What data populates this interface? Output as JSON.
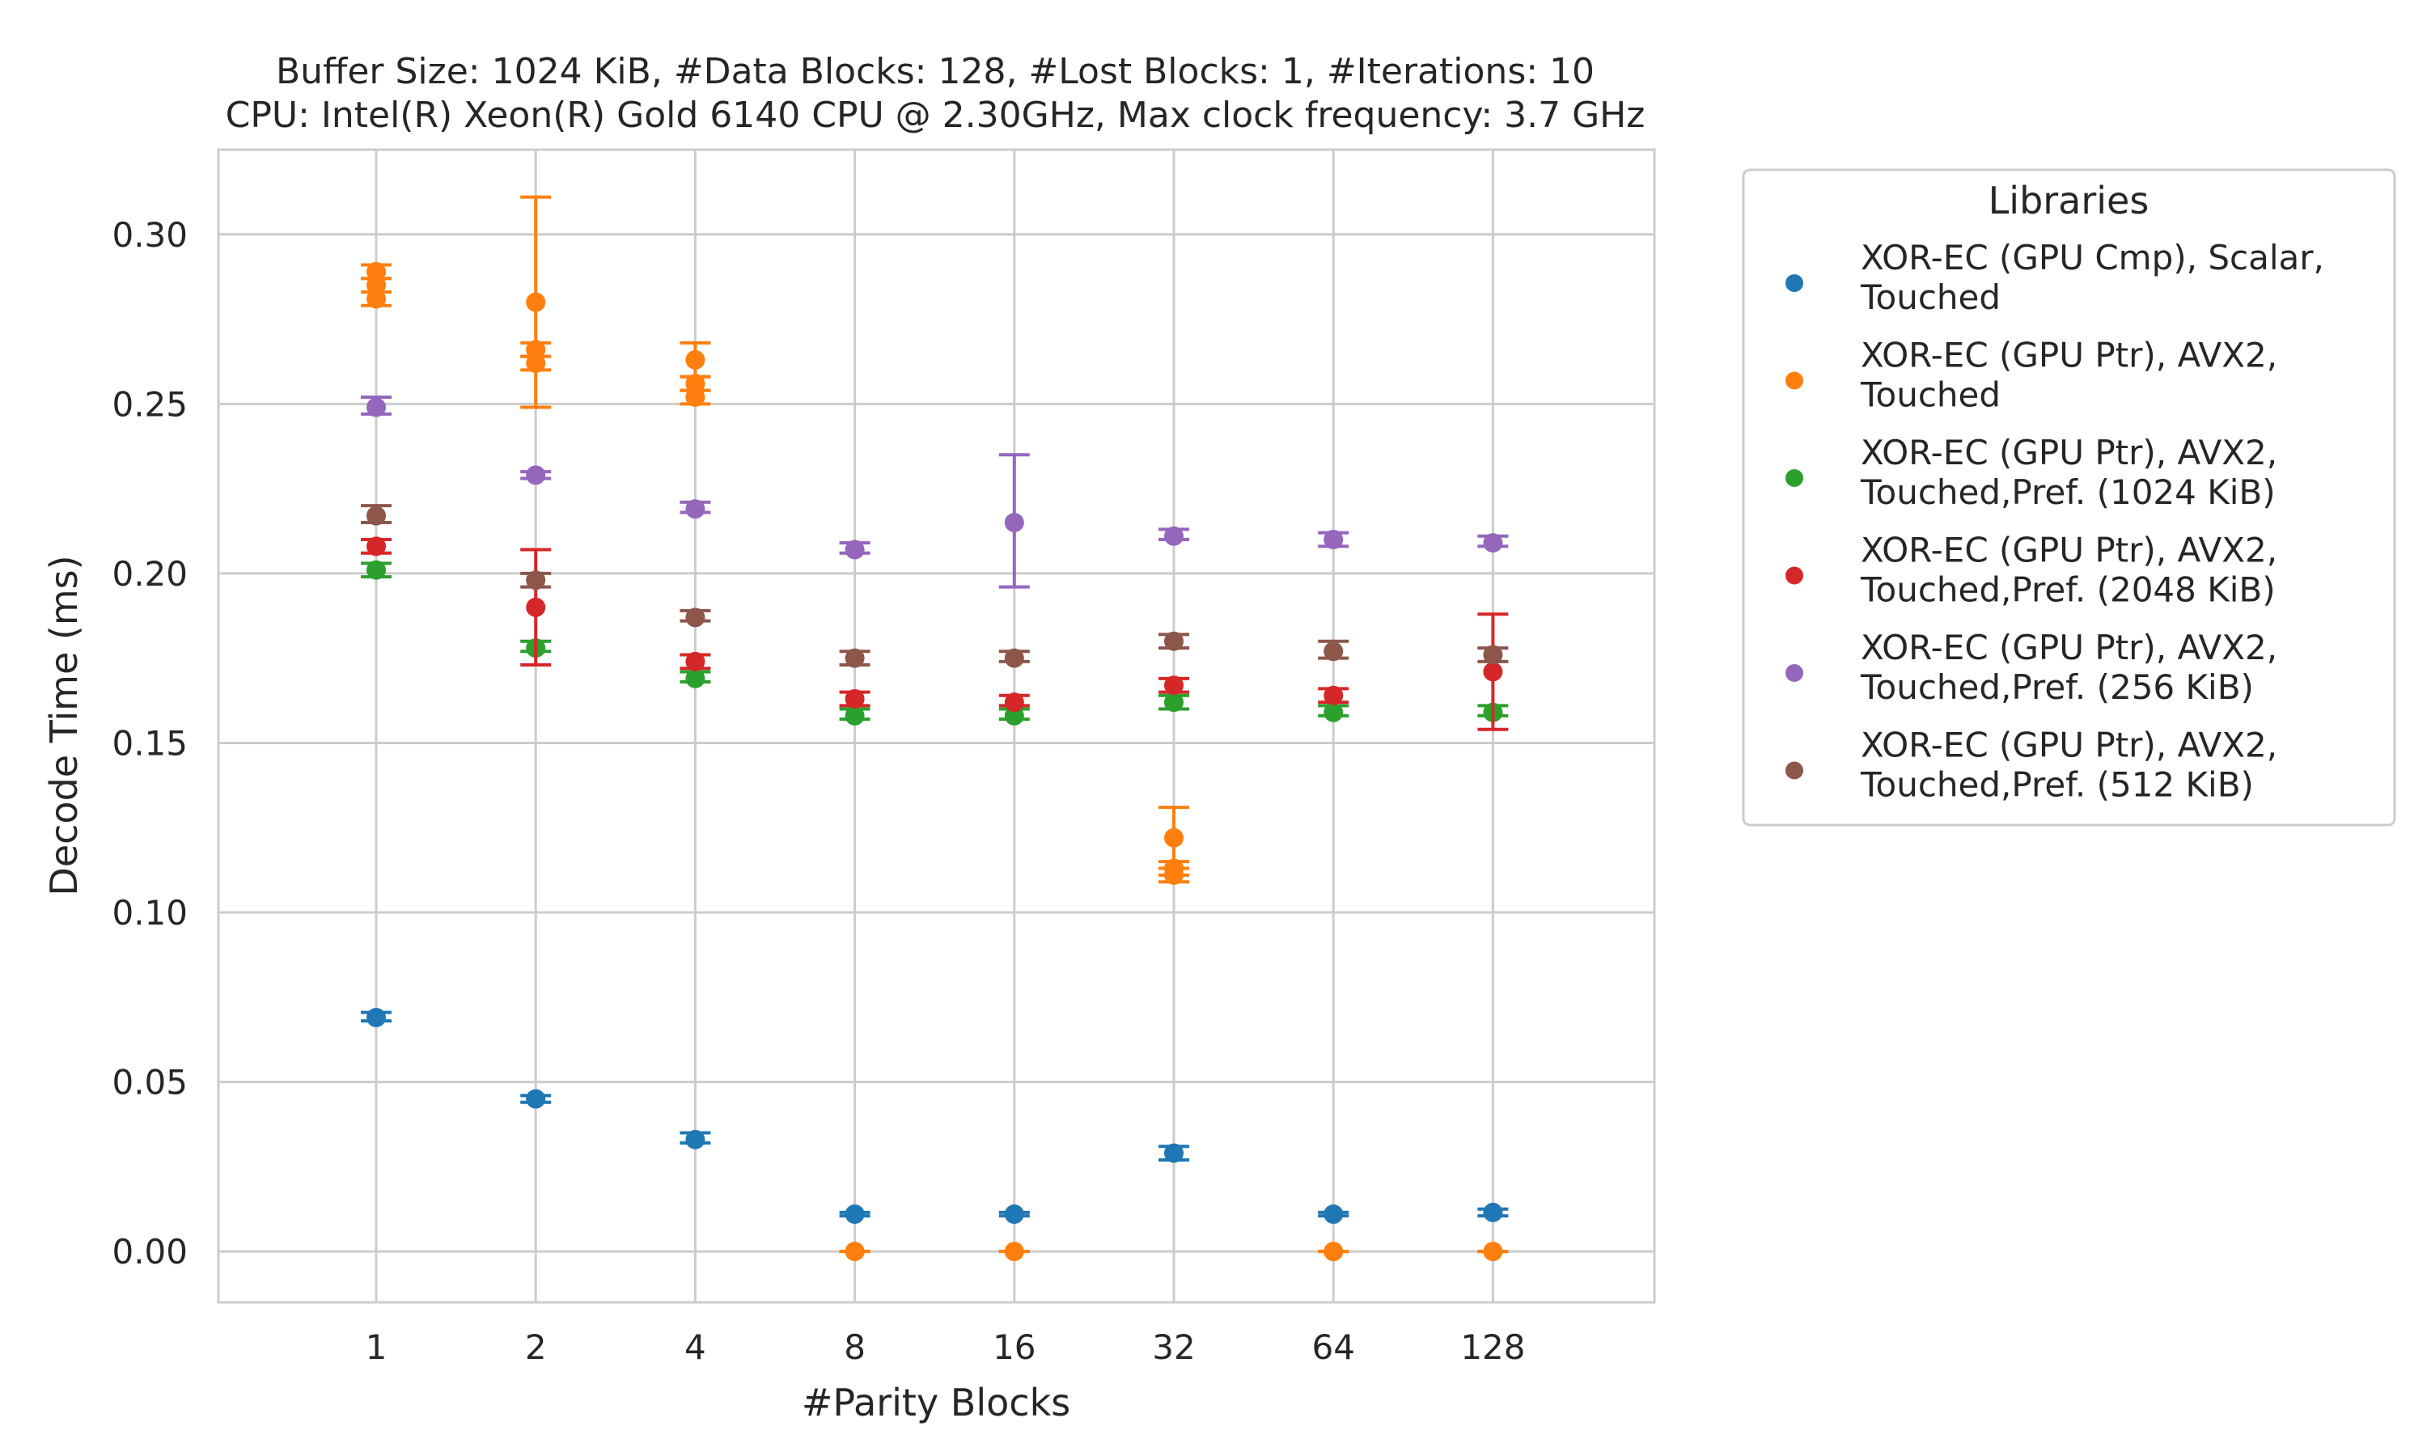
{
  "chart_data": {
    "type": "scatter",
    "title": [
      "Buffer Size: 1024 KiB, #Data Blocks: 128, #Lost Blocks: 1, #Iterations: 10",
      "CPU: Intel(R) Xeon(R) Gold 6140 CPU @ 2.30GHz, Max clock frequency: 3.7 GHz"
    ],
    "xlabel": "#Parity Blocks",
    "ylabel": "Decode Time (ms)",
    "categories": [
      "1",
      "2",
      "4",
      "8",
      "16",
      "32",
      "64",
      "128"
    ],
    "ylim": [
      -0.015,
      0.325
    ],
    "yticks": [
      "0.00",
      "0.05",
      "0.10",
      "0.15",
      "0.20",
      "0.25",
      "0.30"
    ],
    "grid": true,
    "legend": {
      "title": "Libraries",
      "placement": "outside-right"
    },
    "series": [
      {
        "name": [
          "XOR-EC (GPU Cmp), Scalar,",
          "Touched"
        ],
        "color": "#1f77b4",
        "points": [
          {
            "x": 0,
            "y": 0.069,
            "err": [
              0.068,
              0.0705
            ]
          },
          {
            "x": 1,
            "y": 0.045,
            "err": [
              0.044,
              0.046
            ]
          },
          {
            "x": 2,
            "y": 0.033,
            "err": [
              0.032,
              0.035
            ]
          },
          {
            "x": 3,
            "y": 0.011,
            "err": [
              0.0105,
              0.0115
            ]
          },
          {
            "x": 4,
            "y": 0.011,
            "err": [
              0.0105,
              0.0115
            ]
          },
          {
            "x": 5,
            "y": 0.029,
            "err": [
              0.027,
              0.031
            ]
          },
          {
            "x": 6,
            "y": 0.011,
            "err": [
              0.0105,
              0.0115
            ]
          },
          {
            "x": 7,
            "y": 0.0115,
            "err": [
              0.0105,
              0.0125
            ]
          }
        ]
      },
      {
        "name": [
          "XOR-EC (GPU Ptr), AVX2,",
          "Touched"
        ],
        "color": "#ff7f0e",
        "points": [
          {
            "x": 0,
            "y": 0.289,
            "err": [
              0.287,
              0.291
            ]
          },
          {
            "x": 0,
            "y": 0.285,
            "err": [
              0.283,
              0.287
            ]
          },
          {
            "x": 0,
            "y": 0.281,
            "err": [
              0.279,
              0.283
            ]
          },
          {
            "x": 1,
            "y": 0.28,
            "err": [
              0.249,
              0.311
            ]
          },
          {
            "x": 1,
            "y": 0.266,
            "err": [
              0.264,
              0.268
            ]
          },
          {
            "x": 1,
            "y": 0.262,
            "err": [
              0.26,
              0.264
            ]
          },
          {
            "x": 2,
            "y": 0.263,
            "err": [
              0.258,
              0.268
            ]
          },
          {
            "x": 2,
            "y": 0.256,
            "err": [
              0.254,
              0.258
            ]
          },
          {
            "x": 2,
            "y": 0.252,
            "err": [
              0.25,
              0.254
            ]
          },
          {
            "x": 3,
            "y": 0.0,
            "err": [
              0.0,
              0.0
            ]
          },
          {
            "x": 4,
            "y": 0.0,
            "err": [
              0.0,
              0.0
            ]
          },
          {
            "x": 5,
            "y": 0.122,
            "err": [
              0.113,
              0.131
            ]
          },
          {
            "x": 5,
            "y": 0.113,
            "err": [
              0.111,
              0.115
            ]
          },
          {
            "x": 5,
            "y": 0.111,
            "err": [
              0.109,
              0.113
            ]
          },
          {
            "x": 6,
            "y": 0.0,
            "err": [
              0.0,
              0.0
            ]
          },
          {
            "x": 7,
            "y": 0.0,
            "err": [
              0.0,
              0.0
            ]
          }
        ]
      },
      {
        "name": [
          "XOR-EC (GPU Ptr), AVX2,",
          "Touched,Pref. (1024 KiB)"
        ],
        "color": "#2ca02c",
        "points": [
          {
            "x": 0,
            "y": 0.201,
            "err": [
              0.199,
              0.203
            ]
          },
          {
            "x": 1,
            "y": 0.178,
            "err": [
              0.177,
              0.18
            ]
          },
          {
            "x": 2,
            "y": 0.169,
            "err": [
              0.168,
              0.171
            ]
          },
          {
            "x": 3,
            "y": 0.158,
            "err": [
              0.157,
              0.16
            ]
          },
          {
            "x": 4,
            "y": 0.158,
            "err": [
              0.157,
              0.16
            ]
          },
          {
            "x": 5,
            "y": 0.162,
            "err": [
              0.16,
              0.164
            ]
          },
          {
            "x": 6,
            "y": 0.159,
            "err": [
              0.158,
              0.161
            ]
          },
          {
            "x": 7,
            "y": 0.159,
            "err": [
              0.158,
              0.161
            ]
          }
        ]
      },
      {
        "name": [
          "XOR-EC (GPU Ptr), AVX2,",
          "Touched,Pref. (2048 KiB)"
        ],
        "color": "#d62728",
        "points": [
          {
            "x": 0,
            "y": 0.208,
            "err": [
              0.206,
              0.21
            ]
          },
          {
            "x": 1,
            "y": 0.19,
            "err": [
              0.173,
              0.207
            ]
          },
          {
            "x": 2,
            "y": 0.174,
            "err": [
              0.172,
              0.176
            ]
          },
          {
            "x": 3,
            "y": 0.163,
            "err": [
              0.161,
              0.165
            ]
          },
          {
            "x": 4,
            "y": 0.162,
            "err": [
              0.161,
              0.164
            ]
          },
          {
            "x": 5,
            "y": 0.167,
            "err": [
              0.165,
              0.169
            ]
          },
          {
            "x": 6,
            "y": 0.164,
            "err": [
              0.162,
              0.166
            ]
          },
          {
            "x": 7,
            "y": 0.171,
            "err": [
              0.154,
              0.188
            ]
          }
        ]
      },
      {
        "name": [
          "XOR-EC (GPU Ptr), AVX2,",
          "Touched,Pref. (256 KiB)"
        ],
        "color": "#9467bd",
        "points": [
          {
            "x": 0,
            "y": 0.249,
            "err": [
              0.247,
              0.252
            ]
          },
          {
            "x": 1,
            "y": 0.229,
            "err": [
              0.228,
              0.23
            ]
          },
          {
            "x": 2,
            "y": 0.219,
            "err": [
              0.218,
              0.221
            ]
          },
          {
            "x": 3,
            "y": 0.207,
            "err": [
              0.206,
              0.209
            ]
          },
          {
            "x": 4,
            "y": 0.215,
            "err": [
              0.196,
              0.235
            ]
          },
          {
            "x": 5,
            "y": 0.211,
            "err": [
              0.21,
              0.213
            ]
          },
          {
            "x": 6,
            "y": 0.21,
            "err": [
              0.208,
              0.212
            ]
          },
          {
            "x": 7,
            "y": 0.209,
            "err": [
              0.208,
              0.211
            ]
          }
        ]
      },
      {
        "name": [
          "XOR-EC (GPU Ptr), AVX2,",
          "Touched,Pref. (512 KiB)"
        ],
        "color": "#8c564b",
        "points": [
          {
            "x": 0,
            "y": 0.217,
            "err": [
              0.215,
              0.22
            ]
          },
          {
            "x": 1,
            "y": 0.198,
            "err": [
              0.196,
              0.2
            ]
          },
          {
            "x": 2,
            "y": 0.187,
            "err": [
              0.186,
              0.189
            ]
          },
          {
            "x": 3,
            "y": 0.175,
            "err": [
              0.173,
              0.177
            ]
          },
          {
            "x": 4,
            "y": 0.175,
            "err": [
              0.174,
              0.177
            ]
          },
          {
            "x": 5,
            "y": 0.18,
            "err": [
              0.178,
              0.182
            ]
          },
          {
            "x": 6,
            "y": 0.177,
            "err": [
              0.175,
              0.18
            ]
          },
          {
            "x": 7,
            "y": 0.176,
            "err": [
              0.174,
              0.178
            ]
          }
        ]
      }
    ]
  }
}
